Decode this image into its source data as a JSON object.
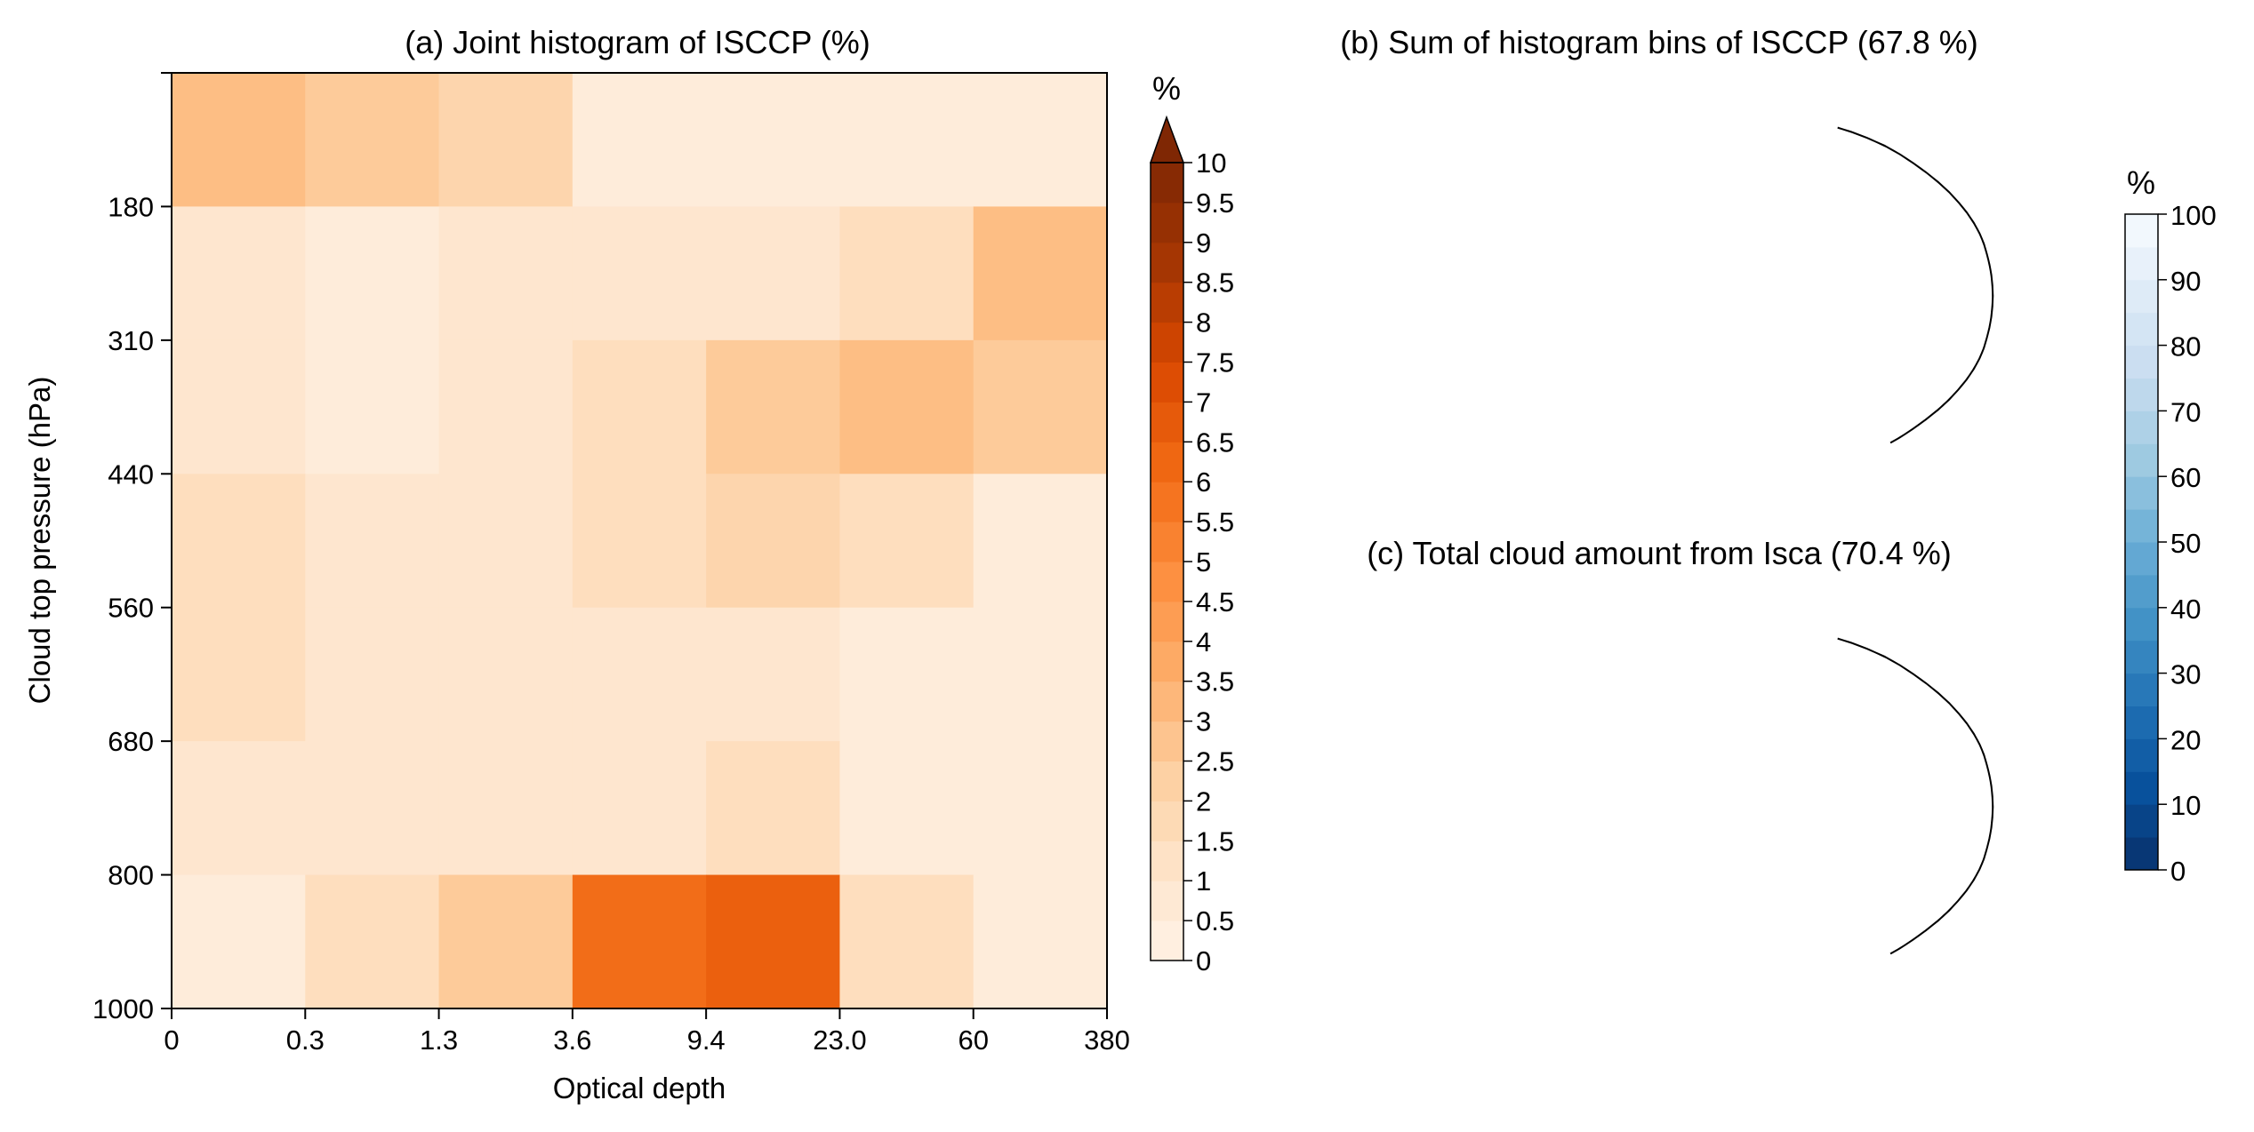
{
  "chart_data": [
    {
      "type": "heatmap",
      "title": "(a) Joint histogram of ISCCP (%)",
      "xlabel": "Optical depth",
      "ylabel": "Cloud top pressure (hPa)",
      "x_bin_edges": [
        "0",
        "0.3",
        "1.3",
        "3.6",
        "9.4",
        "23.0",
        "60",
        "380"
      ],
      "y_bin_edges": [
        "1000",
        "800",
        "680",
        "560",
        "440",
        "310",
        "180"
      ],
      "y_bins_top_to_bottom": [
        "<180",
        "180-310",
        "310-440",
        "440-560",
        "560-680",
        "680-800",
        "800-1000"
      ],
      "values": [
        [
          3.0,
          2.5,
          2.0,
          0.5,
          0.5,
          0.5,
          0.5
        ],
        [
          1.0,
          0.5,
          1.0,
          1.0,
          1.0,
          1.5,
          3.0
        ],
        [
          1.0,
          0.5,
          1.0,
          1.5,
          2.5,
          3.0,
          2.5
        ],
        [
          1.5,
          1.0,
          1.0,
          1.5,
          2.0,
          1.5,
          0.5
        ],
        [
          1.5,
          1.0,
          1.0,
          1.0,
          1.0,
          0.5,
          0.5
        ],
        [
          1.0,
          1.0,
          1.0,
          1.0,
          1.5,
          0.5,
          0.5
        ],
        [
          0.5,
          1.5,
          2.5,
          6.0,
          6.5,
          1.5,
          0.5
        ]
      ],
      "colorbar": {
        "unit": "%",
        "ticks": [
          "10",
          "9.5",
          "9",
          "8.5",
          "8",
          "7.5",
          "7",
          "6.5",
          "6",
          "5.5",
          "5",
          "4.5",
          "4",
          "3.5",
          "3",
          "2.5",
          "2",
          "1.5",
          "1",
          "0.5",
          "0"
        ],
        "range": [
          0,
          10
        ],
        "extend": "max",
        "colormap": "Oranges"
      }
    },
    {
      "type": "map",
      "title": "(b) Sum of histogram bins of ISCCP (67.8 %)",
      "projection": "Robinson, centered on the Pacific",
      "colormap": "Blues (reversed)",
      "global_mean": 67.8
    },
    {
      "type": "map",
      "title": "(c) Total cloud amount from Isca (70.4 %)",
      "projection": "Robinson, centered on the Pacific",
      "colormap": "Blues (reversed)",
      "global_mean": 70.4
    },
    {
      "type": "colorbar",
      "unit": "%",
      "ticks": [
        "100",
        "90",
        "80",
        "70",
        "60",
        "50",
        "40",
        "30",
        "20",
        "10",
        "0"
      ],
      "range": [
        0,
        100
      ]
    }
  ],
  "colors": {
    "oranges": [
      "#fff5eb",
      "#fee6ce",
      "#fdd0a2",
      "#fdae6b",
      "#fd8d3c",
      "#f16913",
      "#d94801",
      "#a63603",
      "#7f2704"
    ],
    "blues_reversed": [
      "#08306b",
      "#08519c",
      "#2171b5",
      "#4292c6",
      "#6baed6",
      "#9ecae1",
      "#c6dbef",
      "#deebf7",
      "#f7fbff"
    ]
  }
}
